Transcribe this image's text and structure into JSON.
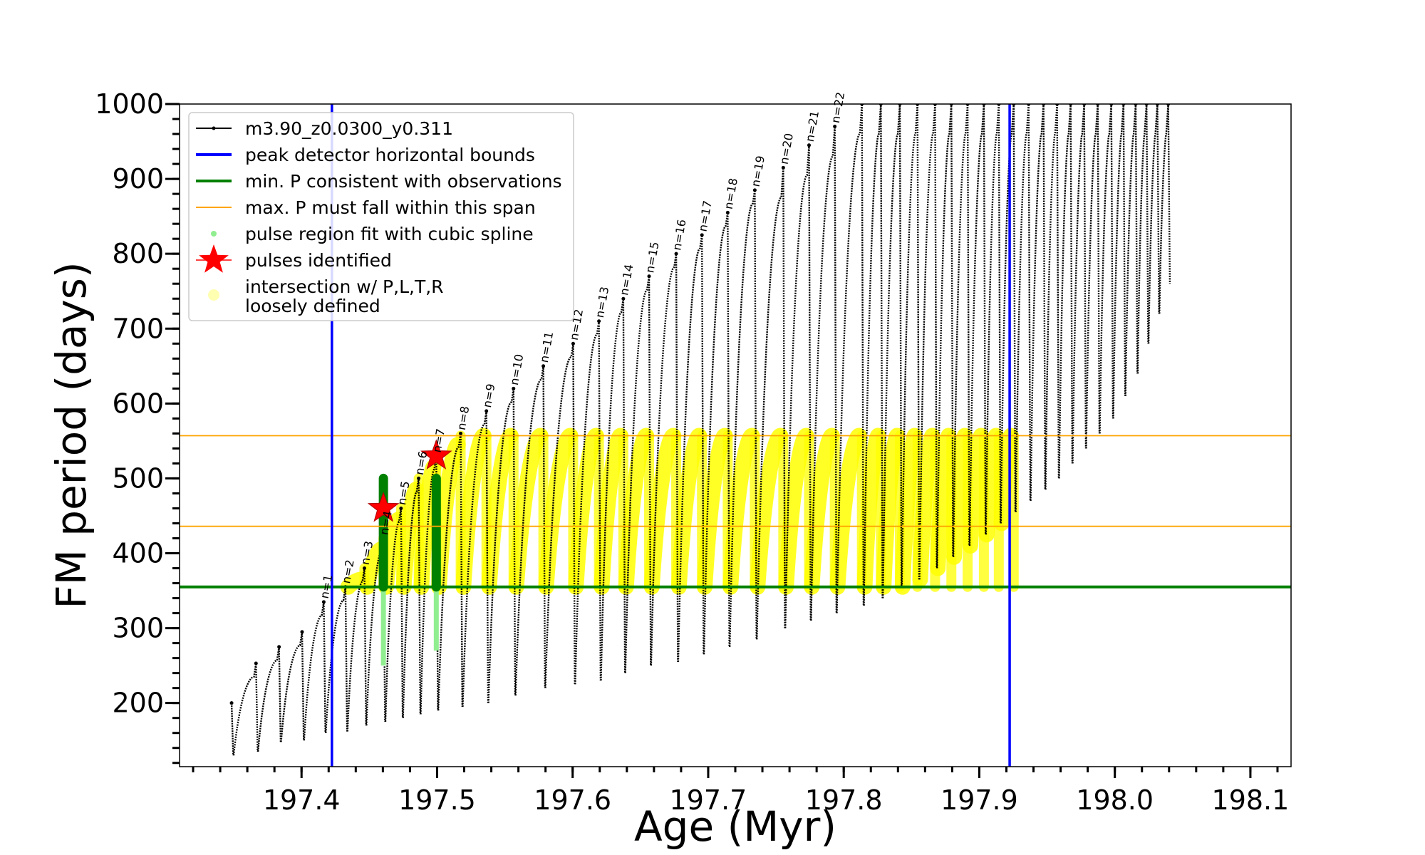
{
  "chart_data": {
    "type": "line",
    "xlabel": "Age (Myr)",
    "ylabel": "FM period (days)",
    "xlim": [
      197.31,
      198.13
    ],
    "ylim": [
      115,
      1000
    ],
    "x_ticks": [
      "197.4",
      "197.5",
      "197.6",
      "197.7",
      "197.8",
      "197.9",
      "198.0",
      "198.1"
    ],
    "y_ticks": [
      "200",
      "300",
      "400",
      "500",
      "600",
      "700",
      "800",
      "900",
      "1000"
    ],
    "series": [
      {
        "name": "m3.90_z0.0300_y0.311",
        "kind": "line-markers",
        "color": "#000000",
        "pulses": [
          {
            "x": 197.3484,
            "min": 130,
            "max": 200
          },
          {
            "x": 197.3664,
            "min": 135,
            "max": 253
          },
          {
            "x": 197.3834,
            "min": 148,
            "max": 275
          },
          {
            "x": 197.4004,
            "min": 150,
            "max": 295
          },
          {
            "x": 197.4164,
            "min": 160,
            "max": 335,
            "label": "n=1"
          },
          {
            "x": 197.4324,
            "min": 162,
            "max": 355,
            "label": "n=2"
          },
          {
            "x": 197.4464,
            "min": 170,
            "max": 380,
            "label": "n=3"
          },
          {
            "x": 197.4604,
            "min": 175,
            "max": 420,
            "label": "n=4"
          },
          {
            "x": 197.4734,
            "min": 180,
            "max": 460,
            "label": "n=5"
          },
          {
            "x": 197.4864,
            "min": 185,
            "max": 500,
            "label": "n=6"
          },
          {
            "x": 197.4994,
            "min": 190,
            "max": 530,
            "label": "n=7"
          },
          {
            "x": 197.5174,
            "min": 195,
            "max": 560,
            "label": "n=8"
          },
          {
            "x": 197.5364,
            "min": 200,
            "max": 590,
            "label": "n=9"
          },
          {
            "x": 197.5564,
            "min": 210,
            "max": 620,
            "label": "n=10"
          },
          {
            "x": 197.5784,
            "min": 220,
            "max": 650,
            "label": "n=11"
          },
          {
            "x": 197.6004,
            "min": 225,
            "max": 680,
            "label": "n=12"
          },
          {
            "x": 197.6194,
            "min": 230,
            "max": 710,
            "label": "n=13"
          },
          {
            "x": 197.6374,
            "min": 240,
            "max": 740,
            "label": "n=14"
          },
          {
            "x": 197.6564,
            "min": 250,
            "max": 770,
            "label": "n=15"
          },
          {
            "x": 197.6764,
            "min": 255,
            "max": 800,
            "label": "n=16"
          },
          {
            "x": 197.6954,
            "min": 265,
            "max": 825,
            "label": "n=17"
          },
          {
            "x": 197.7144,
            "min": 275,
            "max": 855,
            "label": "n=18"
          },
          {
            "x": 197.7344,
            "min": 285,
            "max": 885,
            "label": "n=19"
          },
          {
            "x": 197.7554,
            "min": 300,
            "max": 915,
            "label": "n=20"
          },
          {
            "x": 197.7744,
            "min": 310,
            "max": 945,
            "label": "n=21"
          },
          {
            "x": 197.7934,
            "min": 320,
            "max": 970,
            "label": "n=22"
          },
          {
            "x": 197.8134,
            "min": 330,
            "max": 1000
          },
          {
            "x": 197.8274,
            "min": 340,
            "max": 1000
          },
          {
            "x": 197.8414,
            "min": 355,
            "max": 1000
          },
          {
            "x": 197.8544,
            "min": 365,
            "max": 1000
          },
          {
            "x": 197.8674,
            "min": 380,
            "max": 1000
          },
          {
            "x": 197.8794,
            "min": 395,
            "max": 1000
          },
          {
            "x": 197.8914,
            "min": 410,
            "max": 1000
          },
          {
            "x": 197.9034,
            "min": 425,
            "max": 1000
          },
          {
            "x": 197.9144,
            "min": 440,
            "max": 1000
          },
          {
            "x": 197.9254,
            "min": 455,
            "max": 1000
          },
          {
            "x": 197.9364,
            "min": 470,
            "max": 1000
          },
          {
            "x": 197.9474,
            "min": 485,
            "max": 1000
          },
          {
            "x": 197.9574,
            "min": 500,
            "max": 1000
          },
          {
            "x": 197.9674,
            "min": 520,
            "max": 1000
          },
          {
            "x": 197.9774,
            "min": 540,
            "max": 1000
          },
          {
            "x": 197.9874,
            "min": 560,
            "max": 1000
          },
          {
            "x": 197.9974,
            "min": 580,
            "max": 1000
          },
          {
            "x": 198.0064,
            "min": 610,
            "max": 1000
          },
          {
            "x": 198.0154,
            "min": 640,
            "max": 1000
          },
          {
            "x": 198.0234,
            "min": 680,
            "max": 1000
          },
          {
            "x": 198.0314,
            "min": 720,
            "max": 1000
          },
          {
            "x": 198.0394,
            "min": 760,
            "max": 1000
          }
        ]
      },
      {
        "name": "peak detector horizontal bounds",
        "kind": "vline",
        "color": "#0000ff",
        "x": [
          197.4224,
          197.9224
        ]
      },
      {
        "name": "min. P consistent with observations",
        "kind": "hline",
        "color": "#008000",
        "y": 355
      },
      {
        "name": "max. P must fall within this span",
        "kind": "hline",
        "color": "#ffa500",
        "y": [
          436,
          557
        ]
      },
      {
        "name": "pulse region fit with cubic spline",
        "kind": "scatter",
        "color": "#90ee90",
        "segments": [
          {
            "x": 197.4604,
            "min": 250,
            "max": 500
          },
          {
            "x": 197.4994,
            "min": 270,
            "max": 500
          }
        ]
      },
      {
        "name": "pulses identified",
        "kind": "star",
        "color": "#ff0000",
        "points": [
          [
            197.4604,
            460
          ],
          [
            197.4994,
            530
          ]
        ]
      },
      {
        "name": "intersection w/ P,L,T,R\nloosely defined",
        "kind": "scatter",
        "color": "#ffff00"
      }
    ],
    "legend": "upper-left",
    "grid": false
  }
}
